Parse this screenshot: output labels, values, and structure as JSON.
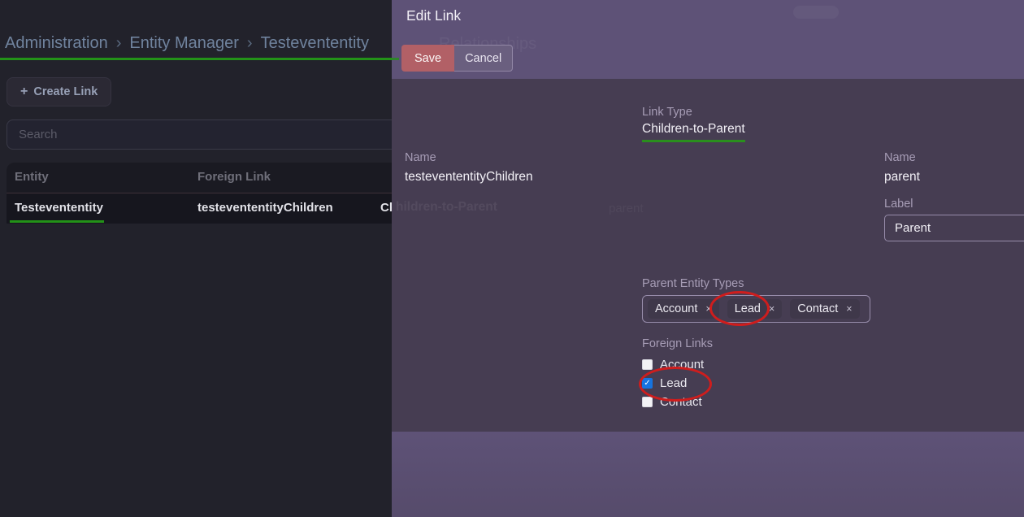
{
  "colors": {
    "accent_green": "#239218",
    "annotation_red": "#cf1d1d",
    "save_button_red": "#b26066",
    "checkbox_blue": "#1673e0"
  },
  "page": {
    "breadcrumb": {
      "items": [
        "Administration",
        "Entity Manager",
        "Testevententity"
      ],
      "separator": "›"
    },
    "create_link": {
      "icon": "+",
      "label": "Create Link"
    },
    "search_placeholder": "Search",
    "table": {
      "headers": [
        "Entity",
        "Foreign Link"
      ],
      "row": {
        "entity": "Testevententity",
        "foreign_link": "testevententityChildren",
        "link_type": "Children-to-Parent"
      }
    }
  },
  "modal": {
    "title": "Edit Link",
    "buttons": {
      "save": "Save",
      "cancel": "Cancel"
    },
    "link_type": {
      "label": "Link Type",
      "value": "Children-to-Parent"
    },
    "name_left": {
      "label": "Name",
      "value": "testevententityChildren"
    },
    "name_right": {
      "label": "Name",
      "value": "parent"
    },
    "label_field": {
      "label": "Label",
      "value": "Parent"
    },
    "parent_entity_types": {
      "label": "Parent Entity Types",
      "remove_icon": "×",
      "tags": [
        "Account",
        "Lead",
        "Contact"
      ]
    },
    "foreign_links": {
      "label": "Foreign Links",
      "check_glyph": "✓",
      "options": [
        {
          "label": "Account",
          "checked": false
        },
        {
          "label": "Lead",
          "checked": true
        },
        {
          "label": "Contact",
          "checked": false
        }
      ]
    }
  },
  "ghosts": {
    "breadcrumb_tail": "Relationships",
    "row_link_type_tail": "hildren-to-Parent",
    "ghost_word": "parent"
  }
}
